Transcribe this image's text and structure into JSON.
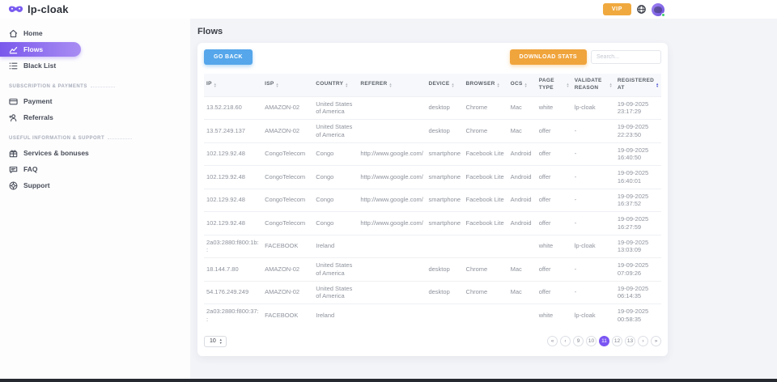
{
  "brand": {
    "name": "lp-cloak"
  },
  "topbar": {
    "vip_label": "VIP"
  },
  "sidebar": {
    "main_items": [
      {
        "label": "Home"
      },
      {
        "label": "Flows"
      },
      {
        "label": "Black List"
      }
    ],
    "sections": [
      {
        "title": "SUBSCRIPTION & PAYMENTS",
        "items": [
          {
            "label": "Payment"
          },
          {
            "label": "Referrals"
          }
        ]
      },
      {
        "title": "USEFUL INFORMATION & SUPPORT",
        "items": [
          {
            "label": "Services & bonuses"
          },
          {
            "label": "FAQ"
          },
          {
            "label": "Support"
          }
        ]
      }
    ]
  },
  "page": {
    "title": "Flows"
  },
  "toolbar": {
    "go_back_label": "GO BACK",
    "download_stats_label": "DOWNLOAD STATS",
    "search_placeholder": "Search..."
  },
  "table": {
    "columns": [
      {
        "key": "ip",
        "label": "IP",
        "sorted": false
      },
      {
        "key": "isp",
        "label": "ISP",
        "sorted": false
      },
      {
        "key": "country",
        "label": "COUNTRY",
        "sorted": false
      },
      {
        "key": "referer",
        "label": "REFERER",
        "sorted": false
      },
      {
        "key": "device",
        "label": "DEVICE",
        "sorted": false
      },
      {
        "key": "browser",
        "label": "BROWSER",
        "sorted": false
      },
      {
        "key": "ocs",
        "label": "OCS",
        "sorted": false
      },
      {
        "key": "page-type",
        "label": "PAGE TYPE",
        "sorted": false
      },
      {
        "key": "validate-reason",
        "label": "VALIDATE REASON",
        "sorted": false
      },
      {
        "key": "registered-at",
        "label": "REGISTERED AT",
        "sorted": true
      }
    ],
    "rows": [
      [
        "13.52.218.60",
        "AMAZON-02",
        "United States of America",
        "",
        "desktop",
        "Chrome",
        "Mac",
        "white",
        "lp-cloak",
        "19-09-2025 23:17:29"
      ],
      [
        "13.57.249.137",
        "AMAZON-02",
        "United States of America",
        "",
        "desktop",
        "Chrome",
        "Mac",
        "offer",
        "-",
        "19-09-2025 22:23:50"
      ],
      [
        "102.129.92.48",
        "CongoTelecom",
        "Congo",
        "http://www.google.com/",
        "smartphone",
        "Facebook Lite",
        "Android",
        "offer",
        "-",
        "19-09-2025 16:40:50"
      ],
      [
        "102.129.92.48",
        "CongoTelecom",
        "Congo",
        "http://www.google.com/",
        "smartphone",
        "Facebook Lite",
        "Android",
        "offer",
        "-",
        "19-09-2025 16:40:01"
      ],
      [
        "102.129.92.48",
        "CongoTelecom",
        "Congo",
        "http://www.google.com/",
        "smartphone",
        "Facebook Lite",
        "Android",
        "offer",
        "-",
        "19-09-2025 16:37:52"
      ],
      [
        "102.129.92.48",
        "CongoTelecom",
        "Congo",
        "http://www.google.com/",
        "smartphone",
        "Facebook Lite",
        "Android",
        "offer",
        "-",
        "19-09-2025 16:27:59"
      ],
      [
        "2a03:2880:f800:1b::",
        "FACEBOOK",
        "Ireland",
        "",
        "",
        "",
        "",
        "white",
        "lp-cloak",
        "19-09-2025 13:03:09"
      ],
      [
        "18.144.7.80",
        "AMAZON-02",
        "United States of America",
        "",
        "desktop",
        "Chrome",
        "Mac",
        "offer",
        "-",
        "19-09-2025 07:09:26"
      ],
      [
        "54.176.249.249",
        "AMAZON-02",
        "United States of America",
        "",
        "desktop",
        "Chrome",
        "Mac",
        "offer",
        "-",
        "19-09-2025 06:14:35"
      ],
      [
        "2a03:2880:f800:37::",
        "FACEBOOK",
        "Ireland",
        "",
        "",
        "",
        "",
        "white",
        "lp-cloak",
        "19-09-2025 00:58:35"
      ]
    ]
  },
  "pagination": {
    "page_size": "10",
    "first_label": "«",
    "prev_label": "‹",
    "next_label": "›",
    "last_label": "»",
    "pages": [
      "9",
      "10",
      "11",
      "12",
      "13"
    ],
    "active_page": "11"
  },
  "colors": {
    "accent_purple": "#7a55f2",
    "sidebar_gradient_start": "#7a58ec",
    "sidebar_gradient_end": "#a98df3",
    "vip_orange": "#f0a93e",
    "go_back_blue": "#55a6ea",
    "download_orange": "#f0a43c",
    "online_green": "#3ecf6a"
  }
}
